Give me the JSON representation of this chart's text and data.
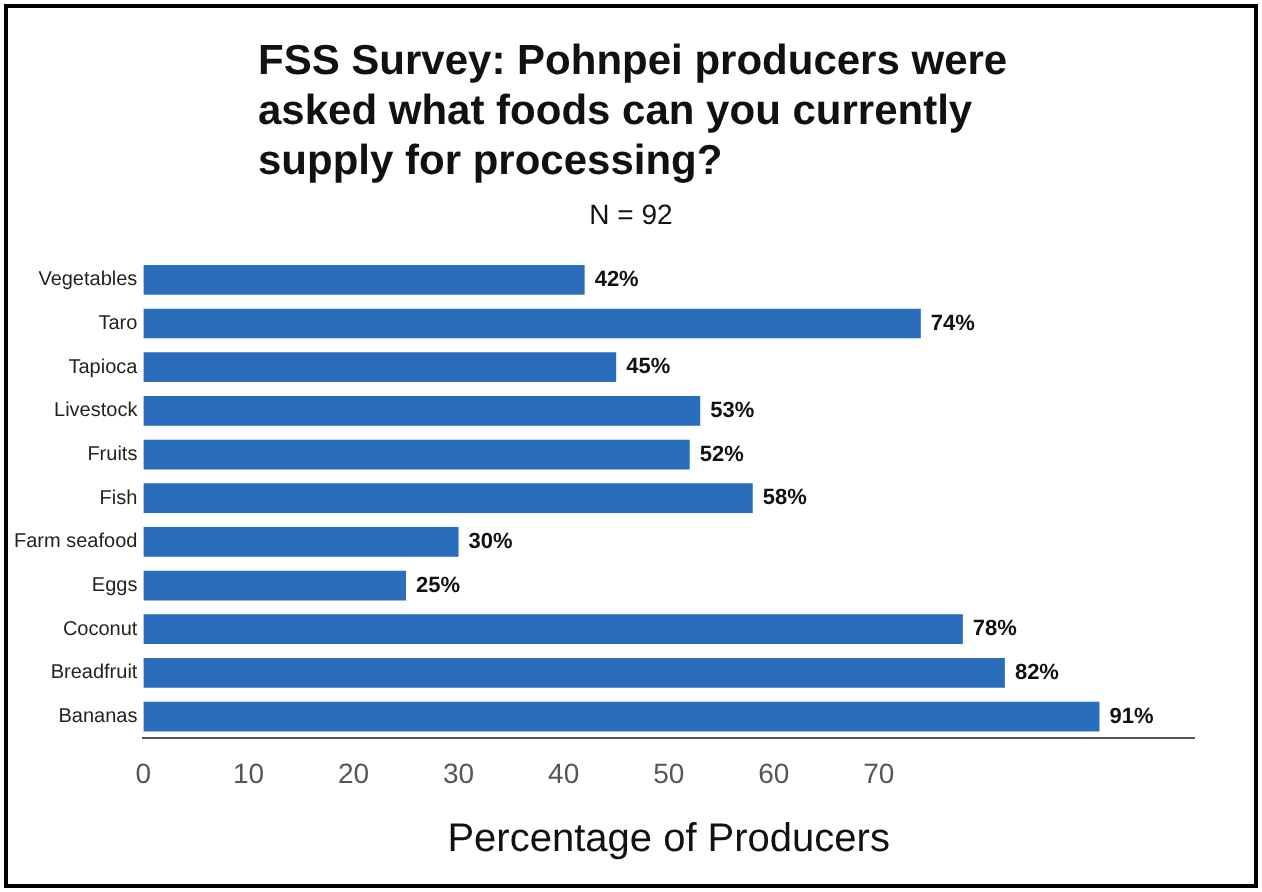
{
  "chart_data": {
    "type": "bar",
    "orientation": "horizontal",
    "title": "FSS Survey: Pohnpei producers were asked what foods can you currently supply for processing?",
    "subtitle": "N = 92",
    "xlabel": "Percentage of Producers",
    "categories": [
      "Vegetables",
      "Taro",
      "Tapioca",
      "Livestock",
      "Fruits",
      "Fish",
      "Farm seafood",
      "Eggs",
      "Coconut",
      "Breadfruit",
      "Bananas"
    ],
    "values": [
      42,
      74,
      45,
      53,
      52,
      58,
      30,
      25,
      78,
      82,
      91
    ],
    "value_labels": [
      "42%",
      "74%",
      "45%",
      "53%",
      "52%",
      "58%",
      "30%",
      "25%",
      "78%",
      "82%",
      "91%"
    ],
    "color": "#2a6ebb",
    "xlim": [
      0,
      100
    ],
    "xticks": [
      0,
      10,
      20,
      30,
      40,
      50,
      60,
      70
    ],
    "grid": false,
    "legend": false
  }
}
